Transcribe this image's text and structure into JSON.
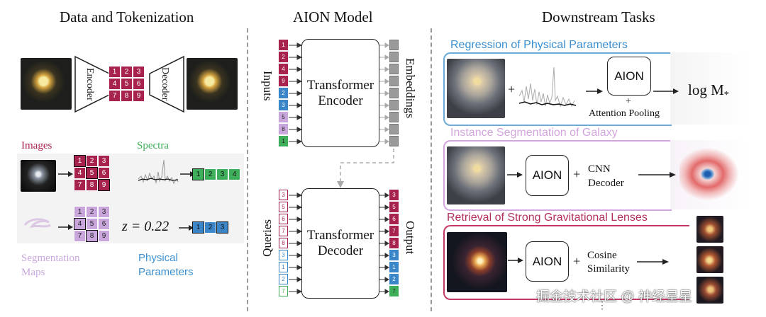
{
  "titles": {
    "left": "Data and Tokenization",
    "middle": "AION Model",
    "right": "Downstream Tasks"
  },
  "autoencoder": {
    "encoder": "Encoder",
    "decoder": "Decoder",
    "grid": [
      "1",
      "2",
      "3",
      "4",
      "5",
      "6",
      "7",
      "8",
      "9"
    ]
  },
  "modalities": {
    "images": "Images",
    "spectra": "Spectra",
    "segmentation_line1": "Segmentation",
    "segmentation_line2": "Maps",
    "physical_line1": "Physical",
    "physical_line2": "Parameters",
    "image_tokens": [
      "1",
      "2",
      "3",
      "4",
      "5",
      "6",
      "7",
      "8",
      "9"
    ],
    "spectra_tokens": [
      "1",
      "2",
      "3",
      "4"
    ],
    "seg_tokens": [
      "1",
      "2",
      "3",
      "4",
      "5",
      "6",
      "7",
      "8",
      "9"
    ],
    "phys_eq": "z = 0.22",
    "phys_tokens": [
      "1",
      "2",
      "3"
    ]
  },
  "model": {
    "inputs": "Inputs",
    "embeddings": "Embeddings",
    "encoder_line1": "Transformer",
    "encoder_line2": "Encoder",
    "decoder_line1": "Transformer",
    "decoder_line2": "Decoder",
    "queries": "Queries",
    "output": "Output",
    "input_tokens": [
      "1",
      "2",
      "4",
      "9",
      "2",
      "3",
      "5",
      "8",
      "1"
    ],
    "query_tokens": [
      "3",
      "5",
      "6",
      "7",
      "8",
      "3",
      "1",
      "2",
      "7"
    ],
    "output_tokens": [
      "3",
      "5",
      "6",
      "7",
      "8",
      "3",
      "1",
      "2",
      "7"
    ]
  },
  "tasks": {
    "regression_title": "Regression of Physical Parameters",
    "regression_box": "AION",
    "regression_plus": "+",
    "attention_pooling": "Attention Pooling",
    "regression_output": "log M",
    "regression_output_sub": "*",
    "segmentation_title": "Instance Segmentation of Galaxy",
    "seg_box": "AION",
    "seg_plus": "+",
    "cnn_line1": "CNN",
    "cnn_line2": "Decoder",
    "retrieval_title": "Retrieval of Strong Gravitational Lenses",
    "ret_box": "AION",
    "ret_plus": "+",
    "cosine_line1": "Cosine",
    "cosine_line2": "Similarity",
    "plus_sign": "+",
    "dots": "⋮"
  },
  "watermark": "掘金技术社区 @ 神经星星",
  "colors": {
    "image_token": "#a8224e",
    "spectra_token": "#3fae5a",
    "seg_token": "#c9a7dd",
    "phys_token": "#3b86c8",
    "blue_title": "#3b8fcf",
    "pink_title": "#c9a7dd",
    "red_title": "#b3305c",
    "embed_gray": "#9a9a9a"
  }
}
